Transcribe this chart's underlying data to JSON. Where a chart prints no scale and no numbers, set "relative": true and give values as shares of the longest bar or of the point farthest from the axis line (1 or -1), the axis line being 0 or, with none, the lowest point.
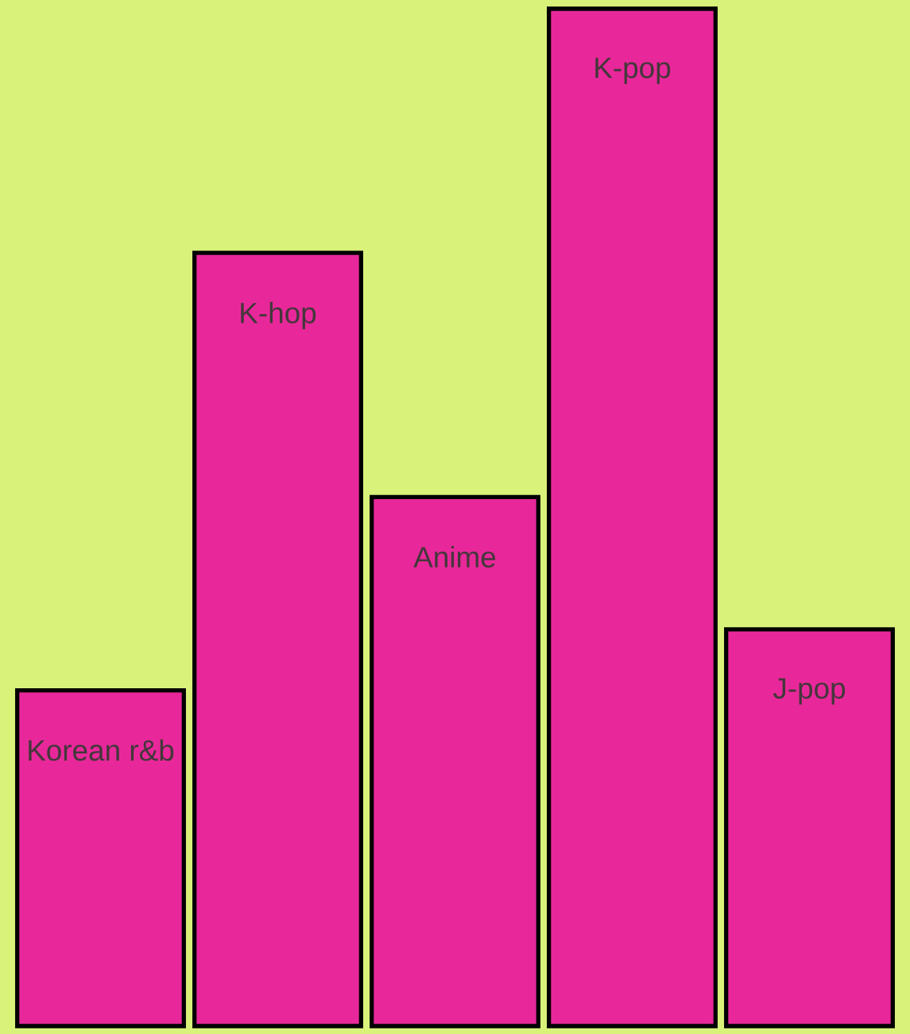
{
  "chart_data": {
    "type": "bar",
    "relative": true,
    "categories": [
      "Korean r&b",
      "K-hop",
      "Anime",
      "K-pop",
      "J-pop"
    ],
    "values": [
      0.33,
      0.76,
      0.52,
      1,
      0.39
    ],
    "color": "#e8289a"
  }
}
